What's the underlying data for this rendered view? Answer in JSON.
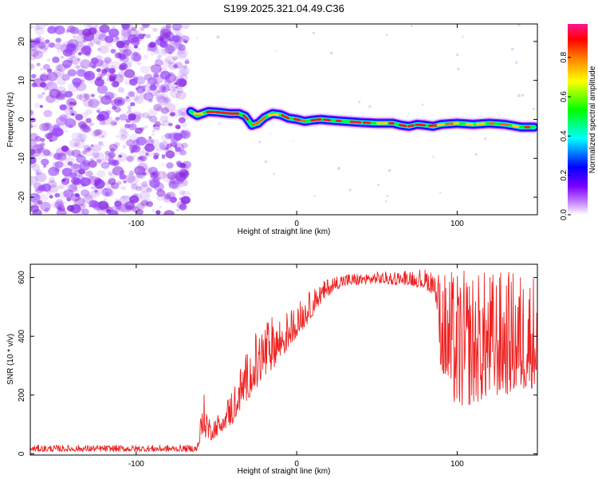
{
  "title": "S199.2025.321.04.49.C36",
  "colors": {
    "line": "#ee2222",
    "frame": "#000000",
    "noise": "#7a1fe8",
    "colorbar": [
      "#ffffff",
      "#b400ff",
      "#0000ff",
      "#00ffff",
      "#00ff00",
      "#ffff00",
      "#ff8000",
      "#ff0000",
      "#ff1493"
    ]
  },
  "chart_data": [
    {
      "type": "heatmap",
      "name": "spectrogram",
      "xlabel": "Height of straight line (km)",
      "ylabel": "Frequency (Hz)",
      "xlim": [
        -166,
        150
      ],
      "ylim": [
        -24.5,
        24.5
      ],
      "xticks": [
        -100,
        0,
        100
      ],
      "xtick_labels": [
        "-100",
        "0",
        "100"
      ],
      "yticks": [
        -20,
        -10,
        0,
        10,
        20
      ],
      "ytick_labels": [
        "-20",
        "-10",
        "0",
        "10",
        "20"
      ],
      "noise_region_x": [
        -166,
        -68
      ],
      "ridge": {
        "x": [
          -66,
          -62,
          -55,
          -48,
          -42,
          -36,
          -32,
          -28,
          -24,
          -20,
          -15,
          -10,
          -5,
          0,
          5,
          10,
          15,
          20,
          30,
          40,
          50,
          60,
          65,
          70,
          75,
          80,
          85,
          90,
          100,
          110,
          120,
          130,
          140,
          148
        ],
        "y": [
          2.0,
          1.0,
          2.0,
          1.8,
          1.5,
          1.5,
          0.8,
          -1.5,
          -1.0,
          0.5,
          1.5,
          1.2,
          0.3,
          0.0,
          -0.5,
          -0.2,
          0.0,
          -0.2,
          -0.5,
          -0.8,
          -1.0,
          -1.0,
          -1.5,
          -1.8,
          -1.3,
          -1.5,
          -1.8,
          -1.3,
          -1.0,
          -1.3,
          -1.0,
          -1.3,
          -2.0,
          -2.0
        ]
      },
      "colorbar": {
        "label": "Normalized spectral amplitude",
        "range": [
          0,
          0.97
        ],
        "ticks": [
          "0.0",
          "0.2",
          "0.4",
          "0.6",
          "0.8"
        ],
        "tick_values": [
          0,
          0.2,
          0.4,
          0.6,
          0.8
        ]
      }
    },
    {
      "type": "line",
      "name": "snr",
      "xlabel": "Height of straight line (km)",
      "ylabel": "SNR (10 * v/v)",
      "xlim": [
        -166,
        150
      ],
      "ylim": [
        -4,
        645
      ],
      "xticks": [
        -100,
        0,
        100
      ],
      "xtick_labels": [
        "-100",
        "0",
        "100"
      ],
      "yticks": [
        0,
        200,
        400,
        600
      ],
      "ytick_labels": [
        "0",
        "200",
        "400",
        "600"
      ],
      "envelope": {
        "x": [
          -166,
          -100,
          -62,
          -58,
          -54,
          -50,
          -45,
          -40,
          -35,
          -30,
          -25,
          -20,
          -15,
          -10,
          -5,
          0,
          5,
          10,
          15,
          20,
          25,
          30,
          40,
          50,
          60,
          70,
          80,
          86,
          90,
          95,
          100,
          110,
          120,
          130,
          140,
          150
        ],
        "lo": [
          8,
          8,
          8,
          60,
          45,
          60,
          85,
          100,
          150,
          190,
          210,
          250,
          290,
          320,
          360,
          400,
          430,
          470,
          510,
          540,
          560,
          570,
          575,
          580,
          575,
          575,
          560,
          540,
          280,
          200,
          150,
          170,
          190,
          200,
          210,
          230
        ],
        "hi": [
          30,
          30,
          30,
          210,
          120,
          130,
          170,
          230,
          300,
          360,
          420,
          460,
          470,
          470,
          490,
          510,
          540,
          560,
          580,
          600,
          610,
          615,
          615,
          620,
          620,
          630,
          630,
          630,
          625,
          625,
          625,
          625,
          625,
          625,
          625,
          625
        ]
      }
    }
  ]
}
